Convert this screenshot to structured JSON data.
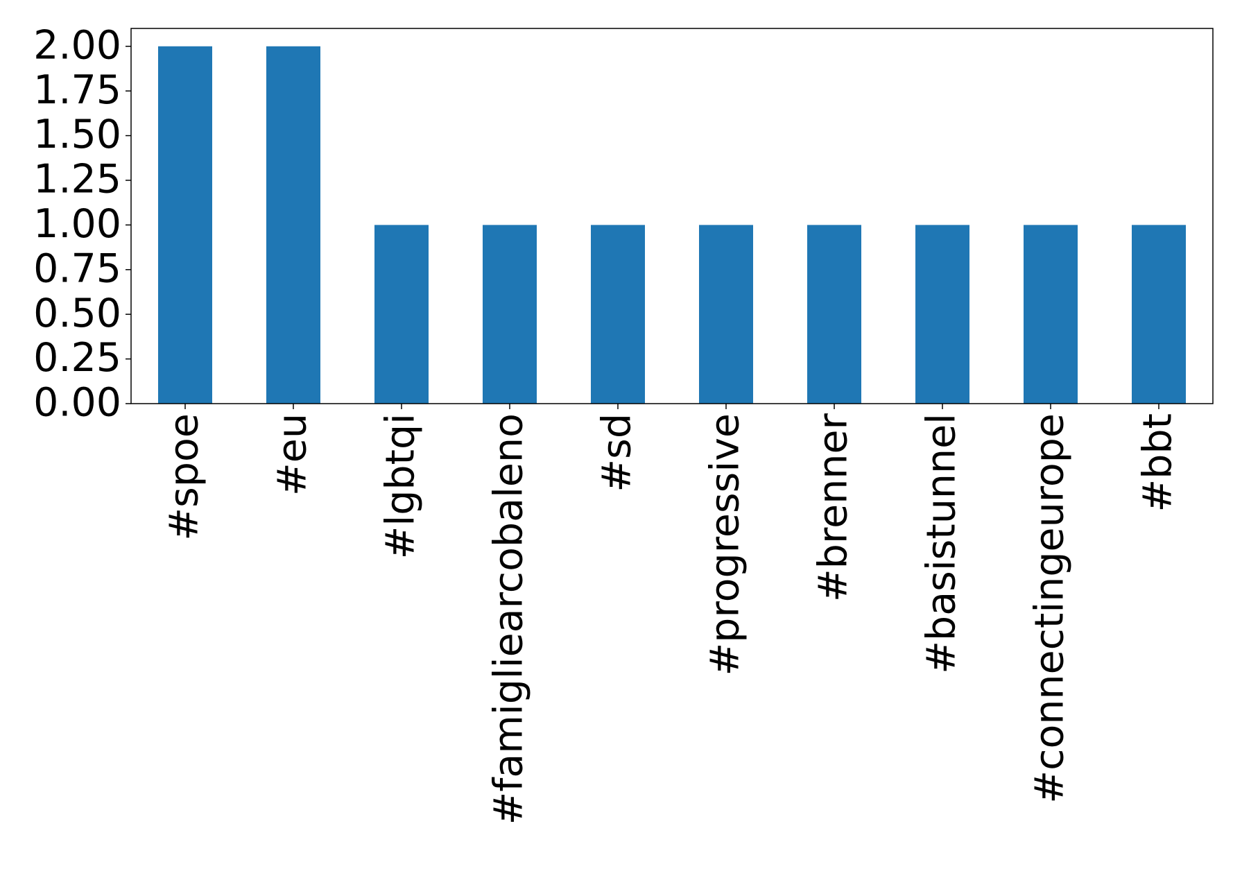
{
  "chart_data": {
    "type": "bar",
    "categories": [
      "#spoe",
      "#eu",
      "#lgbtqi",
      "#famigliearcobaleno",
      "#sd",
      "#progressive",
      "#brenner",
      "#basistunnel",
      "#connectingeurope",
      "#bbt"
    ],
    "values": [
      2,
      2,
      1,
      1,
      1,
      1,
      1,
      1,
      1,
      1
    ],
    "color": "#1f77b4",
    "ylim": [
      0,
      2.1
    ],
    "yticks": [
      {
        "value": 0,
        "label": "0.00"
      },
      0.25,
      {
        "value": 0.5,
        "label": "0.50"
      },
      0.75,
      {
        "value": 1,
        "label": "1.00"
      },
      1.25,
      {
        "value": 1.5,
        "label": "1.50"
      },
      1.75,
      {
        "value": 2,
        "label": "2.00"
      }
    ],
    "grid": false
  }
}
